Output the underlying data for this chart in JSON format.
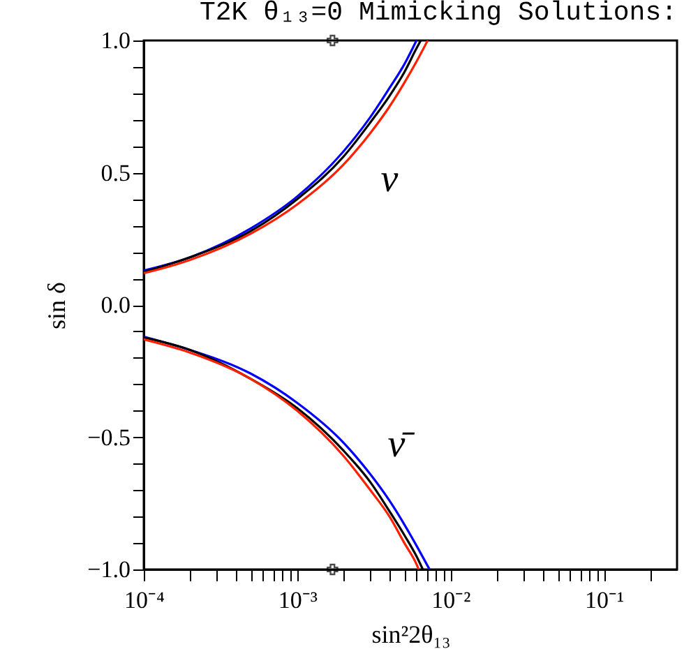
{
  "chart_data": {
    "type": "line",
    "title": "T2K θ₁₃=0 Mimicking Solutions:",
    "xlabel": "sin²2θ₁₃",
    "ylabel": "sin δ",
    "log": "x",
    "grid": false,
    "xlim": [
      0.0001,
      0.3
    ],
    "ylim": [
      -1,
      1
    ],
    "xticks": [
      {
        "value": 0.0001,
        "label": "10⁻⁴"
      },
      {
        "value": 0.0002,
        "label": null
      },
      {
        "value": 0.0003,
        "label": null
      },
      {
        "value": 0.0004,
        "label": null
      },
      {
        "value": 0.0005,
        "label": null
      },
      {
        "value": 0.0006,
        "label": null
      },
      {
        "value": 0.0007,
        "label": null
      },
      {
        "value": 0.0008,
        "label": null
      },
      {
        "value": 0.0009,
        "label": null
      },
      {
        "value": 0.001,
        "label": "10⁻³"
      },
      {
        "value": 0.002,
        "label": null
      },
      {
        "value": 0.003,
        "label": null
      },
      {
        "value": 0.004,
        "label": null
      },
      {
        "value": 0.005,
        "label": null
      },
      {
        "value": 0.006,
        "label": null
      },
      {
        "value": 0.007,
        "label": null
      },
      {
        "value": 0.008,
        "label": null
      },
      {
        "value": 0.009,
        "label": null
      },
      {
        "value": 0.01,
        "label": "10⁻²"
      },
      {
        "value": 0.02,
        "label": null
      },
      {
        "value": 0.03,
        "label": null
      },
      {
        "value": 0.04,
        "label": null
      },
      {
        "value": 0.05,
        "label": null
      },
      {
        "value": 0.06,
        "label": null
      },
      {
        "value": 0.07,
        "label": null
      },
      {
        "value": 0.08,
        "label": null
      },
      {
        "value": 0.09,
        "label": null
      },
      {
        "value": 0.1,
        "label": "10⁻¹"
      },
      {
        "value": 0.2,
        "label": null
      }
    ],
    "yticks": [
      {
        "value": -1,
        "label": "−1.0"
      },
      {
        "value": -0.9,
        "label": null
      },
      {
        "value": -0.8,
        "label": null
      },
      {
        "value": -0.7,
        "label": null
      },
      {
        "value": -0.6,
        "label": null
      },
      {
        "value": -0.5,
        "label": "−0.5"
      },
      {
        "value": -0.4,
        "label": null
      },
      {
        "value": -0.3,
        "label": null
      },
      {
        "value": -0.2,
        "label": null
      },
      {
        "value": -0.1,
        "label": null
      },
      {
        "value": 0,
        "label": "0.0"
      },
      {
        "value": 0.1,
        "label": null
      },
      {
        "value": 0.2,
        "label": null
      },
      {
        "value": 0.3,
        "label": null
      },
      {
        "value": 0.4,
        "label": null
      },
      {
        "value": 0.5,
        "label": "0.5"
      },
      {
        "value": 0.6,
        "label": null
      },
      {
        "value": 0.7,
        "label": null
      },
      {
        "value": 0.8,
        "label": null
      },
      {
        "value": 0.9,
        "label": null
      },
      {
        "value": 1,
        "label": "1.0"
      }
    ],
    "series": [
      {
        "color": "#0000ff",
        "x": [
          0.0001,
          0.0002,
          0.0005,
          0.001,
          0.002,
          0.003,
          0.004,
          0.005,
          0.006
        ],
        "values": [
          0.13,
          0.18,
          0.29,
          0.41,
          0.58,
          0.71,
          0.82,
          0.91,
          1
        ]
      },
      {
        "color": "#000000",
        "x": [
          0.0001,
          0.0002,
          0.0005,
          0.001,
          0.002,
          0.003,
          0.004,
          0.005,
          0.006,
          0.0064
        ],
        "values": [
          0.125,
          0.18,
          0.28,
          0.4,
          0.56,
          0.69,
          0.79,
          0.88,
          0.97,
          1
        ]
      },
      {
        "color": "#ff2000",
        "x": [
          0.0001,
          0.0002,
          0.0005,
          0.001,
          0.002,
          0.003,
          0.004,
          0.005,
          0.006,
          0.0071
        ],
        "values": [
          0.12,
          0.17,
          0.27,
          0.38,
          0.53,
          0.65,
          0.75,
          0.84,
          0.92,
          1
        ]
      },
      {
        "color": "#0000ff",
        "x": [
          0.0001,
          0.0002,
          0.0005,
          0.001,
          0.002,
          0.003,
          0.004,
          0.005,
          0.006,
          0.0073
        ],
        "values": [
          -0.12,
          -0.17,
          -0.26,
          -0.37,
          -0.52,
          -0.64,
          -0.74,
          -0.83,
          -0.91,
          -1
        ]
      },
      {
        "color": "#000000",
        "x": [
          0.0001,
          0.0002,
          0.0005,
          0.001,
          0.002,
          0.003,
          0.004,
          0.005,
          0.006,
          0.0066
        ],
        "values": [
          -0.123,
          -0.17,
          -0.28,
          -0.39,
          -0.55,
          -0.67,
          -0.78,
          -0.87,
          -0.95,
          -1
        ]
      },
      {
        "color": "#ff2000",
        "x": [
          0.0001,
          0.0002,
          0.0005,
          0.001,
          0.002,
          0.003,
          0.004,
          0.005,
          0.006,
          0.0062
        ],
        "values": [
          -0.13,
          -0.18,
          -0.28,
          -0.4,
          -0.57,
          -0.7,
          -0.8,
          -0.9,
          -0.98,
          -1
        ]
      },
      {
        "type": "scatter",
        "marker": "cross",
        "color": "#000000",
        "x": [
          0.0017,
          0.0017
        ],
        "values": [
          1,
          -1
        ]
      }
    ],
    "annotations": [
      "ν",
      "ν̄"
    ]
  }
}
